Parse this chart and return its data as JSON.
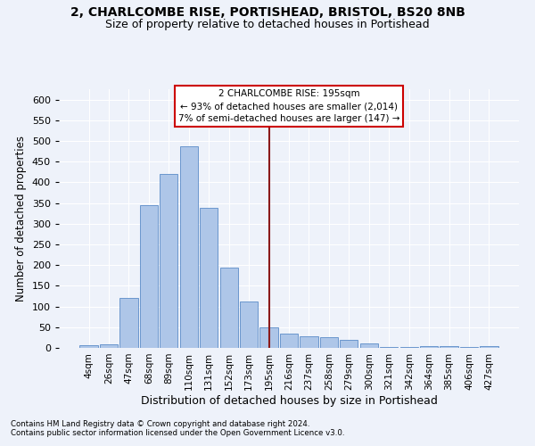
{
  "title": "2, CHARLCOMBE RISE, PORTISHEAD, BRISTOL, BS20 8NB",
  "subtitle": "Size of property relative to detached houses in Portishead",
  "xlabel": "Distribution of detached houses by size in Portishead",
  "ylabel": "Number of detached properties",
  "footnote1": "Contains HM Land Registry data © Crown copyright and database right 2024.",
  "footnote2": "Contains public sector information licensed under the Open Government Licence v3.0.",
  "categories": [
    "4sqm",
    "26sqm",
    "47sqm",
    "68sqm",
    "89sqm",
    "110sqm",
    "131sqm",
    "152sqm",
    "173sqm",
    "195sqm",
    "216sqm",
    "237sqm",
    "258sqm",
    "279sqm",
    "300sqm",
    "321sqm",
    "342sqm",
    "364sqm",
    "385sqm",
    "406sqm",
    "427sqm"
  ],
  "values": [
    6,
    8,
    120,
    345,
    420,
    487,
    338,
    195,
    112,
    50,
    35,
    27,
    25,
    20,
    10,
    3,
    2,
    5,
    4,
    3,
    5
  ],
  "bar_color": "#aec6e8",
  "bar_edge_color": "#5b8cc8",
  "vline_x": 9,
  "vline_color": "#8b1a1a",
  "annotation_title": "2 CHARLCOMBE RISE: 195sqm",
  "annotation_line1": "← 93% of detached houses are smaller (2,014)",
  "annotation_line2": "7% of semi-detached houses are larger (147) →",
  "annotation_box_color": "#ffffff",
  "annotation_box_edge": "#cc0000",
  "ylim": [
    0,
    625
  ],
  "yticks": [
    0,
    50,
    100,
    150,
    200,
    250,
    300,
    350,
    400,
    450,
    500,
    550,
    600
  ],
  "bg_color": "#eef2fa",
  "grid_color": "#ffffff",
  "title_fontsize": 10,
  "subtitle_fontsize": 9,
  "ylabel_fontsize": 8.5,
  "xlabel_fontsize": 9,
  "tick_fontsize": 7.5,
  "ytick_fontsize": 8
}
